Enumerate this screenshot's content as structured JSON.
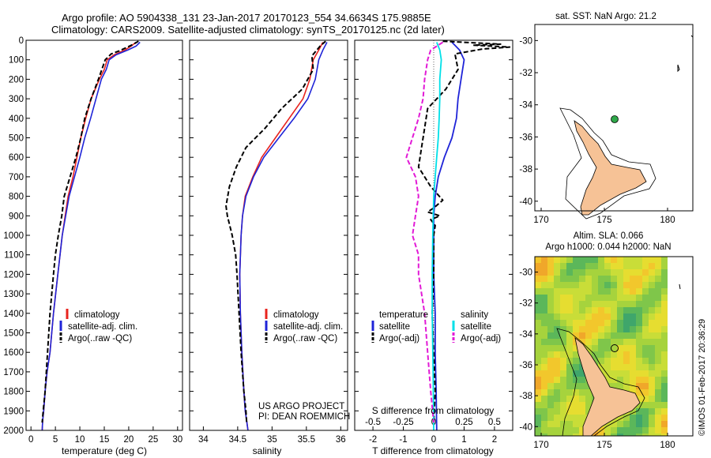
{
  "header": {
    "line1": "Argo profile: AO 5904338_131 23-Jan-2017 20170123_554 34.6634S 175.9885E",
    "line2": "Climatology: CARS2009. Satellite-adjusted climatology: synTS_20170125.nc (2d later)"
  },
  "colors": {
    "climatology": "#e8231e",
    "satellite": "#1f24d8",
    "argo": "#000000",
    "s_satellite": "#00e0e8",
    "s_argo": "#e21ad6",
    "land": "#f6c296",
    "buoy": "#2fa84a"
  },
  "depth_axis": {
    "ylim": [
      2000,
      0
    ],
    "ticks": [
      0,
      100,
      200,
      300,
      400,
      500,
      600,
      700,
      800,
      900,
      1000,
      1100,
      1200,
      1300,
      1400,
      1500,
      1600,
      1700,
      1800,
      1900,
      2000
    ]
  },
  "legend_profiles": {
    "climatology": "climatology",
    "satellite": "satellite-adj. clim.",
    "argo": "Argo(..raw -QC)"
  },
  "legend_diff": {
    "temperature": "temperature",
    "salinity": "salinity",
    "satellite": "satellite",
    "argo": "Argo(-adj)"
  },
  "project_note": {
    "line1": "US ARGO PROJECT",
    "line2": "PI: DEAN ROEMMICH"
  },
  "chart_data": [
    {
      "type": "line",
      "xlabel": "temperature (deg C)",
      "xlim": [
        -1,
        31
      ],
      "xticks": [
        0,
        5,
        10,
        15,
        20,
        25,
        30
      ],
      "series": [
        {
          "name": "climatology",
          "x": [
            21.5,
            20.5,
            19.2,
            17.0,
            15.6,
            15.0,
            14.0,
            12.3,
            11.2,
            10.2,
            9.4,
            8.6,
            7.6,
            6.4,
            5.5,
            4.6,
            3.9,
            3.3,
            2.9,
            2.6,
            2.4,
            2.3
          ],
          "depth": [
            10,
            30,
            50,
            75,
            100,
            150,
            200,
            300,
            400,
            500,
            600,
            700,
            800,
            1000,
            1200,
            1400,
            1600,
            1700,
            1800,
            1900,
            1950,
            2000
          ]
        },
        {
          "name": "satellite-adj. clim.",
          "x": [
            22.3,
            21.5,
            19.8,
            17.4,
            16.0,
            15.4,
            14.4,
            13.3,
            12.2,
            11.0,
            10.0,
            8.9,
            7.8,
            6.4,
            5.5,
            4.6,
            3.9,
            3.3,
            2.9,
            2.6,
            2.4,
            2.3
          ],
          "depth": [
            10,
            30,
            50,
            75,
            100,
            150,
            200,
            300,
            400,
            500,
            600,
            700,
            800,
            1000,
            1200,
            1400,
            1600,
            1700,
            1800,
            1900,
            1950,
            2000
          ]
        },
        {
          "name": "Argo(..raw -QC)",
          "x": [
            22.0,
            21.0,
            19.3,
            18.0,
            16.4,
            15.2,
            13.8,
            12.3,
            11.0,
            10.2,
            9.2,
            8.0,
            6.8,
            6.3,
            5.6,
            5.0,
            4.6,
            3.9,
            3.4,
            2.9,
            2.5,
            2.3
          ],
          "depth": [
            5,
            20,
            40,
            55,
            70,
            100,
            200,
            300,
            400,
            500,
            600,
            700,
            800,
            900,
            1000,
            1100,
            1200,
            1400,
            1600,
            1800,
            1900,
            1960
          ]
        }
      ]
    },
    {
      "type": "line",
      "xlabel": "salinity",
      "xlim": [
        33.8,
        36.1
      ],
      "xticks": [
        34,
        34.5,
        35,
        35.5,
        36
      ],
      "series": [
        {
          "name": "climatology",
          "x": [
            35.74,
            35.68,
            35.6,
            35.55,
            35.45,
            35.25,
            35.05,
            34.85,
            34.72,
            34.61,
            34.57,
            34.55,
            34.53,
            34.54,
            34.56,
            34.59,
            34.61,
            34.63,
            34.65
          ],
          "depth": [
            10,
            50,
            100,
            200,
            300,
            400,
            500,
            600,
            700,
            800,
            900,
            1000,
            1200,
            1400,
            1600,
            1800,
            1900,
            1950,
            2000
          ]
        },
        {
          "name": "satellite-adj. clim.",
          "x": [
            35.8,
            35.74,
            35.68,
            35.63,
            35.52,
            35.32,
            35.1,
            34.88,
            34.73,
            34.62,
            34.57,
            34.55,
            34.53,
            34.54,
            34.56,
            34.59,
            34.61,
            34.63,
            34.65
          ],
          "depth": [
            10,
            50,
            100,
            200,
            300,
            400,
            500,
            600,
            700,
            800,
            900,
            1000,
            1200,
            1400,
            1600,
            1800,
            1900,
            1950,
            2000
          ]
        },
        {
          "name": "Argo(..raw -QC)",
          "x": [
            35.78,
            35.7,
            35.58,
            35.6,
            35.44,
            35.14,
            34.9,
            34.62,
            34.48,
            34.38,
            34.33,
            34.35,
            34.42,
            34.47,
            34.49,
            34.52,
            34.55,
            34.59,
            34.62,
            34.63
          ],
          "depth": [
            5,
            30,
            80,
            150,
            250,
            350,
            450,
            550,
            650,
            750,
            850,
            900,
            1000,
            1100,
            1200,
            1400,
            1600,
            1800,
            1900,
            1960
          ]
        }
      ]
    },
    {
      "type": "line",
      "xlabel": "T difference from climatology",
      "top_label": "S difference from climatology",
      "xlim": [
        -2.6,
        2.6
      ],
      "xticks": [
        -2,
        -1,
        0,
        1,
        2
      ],
      "s_ticks": {
        "positions": [
          -2,
          -1,
          0,
          1,
          2
        ],
        "labels": [
          "-0.5",
          "-0.25",
          "0",
          "0.25",
          "0.5"
        ]
      },
      "series": [
        {
          "name": "temperature satellite",
          "x": [
            0.6,
            0.85,
            1.0,
            0.9,
            0.8,
            0.75,
            0.6,
            0.35,
            0.15,
            0.05,
            0.0,
            0.0,
            0.0,
            0.05,
            0.05,
            0.08,
            0.1
          ],
          "depth": [
            10,
            50,
            100,
            200,
            300,
            400,
            500,
            600,
            700,
            800,
            900,
            1000,
            1200,
            1400,
            1600,
            1800,
            2000
          ]
        },
        {
          "name": "temperature Argo(-adj)",
          "x": [
            0.3,
            2.2,
            1.3,
            2.5,
            1.6,
            0.7,
            0.8,
            0.4,
            -0.2,
            -0.3,
            -0.4,
            -0.5,
            -0.1,
            0.3,
            0.0,
            -0.2,
            0.2,
            -0.1,
            0.05,
            0.0,
            0.0,
            -0.05,
            0.0,
            0.05,
            0.0
          ],
          "depth": [
            5,
            20,
            25,
            35,
            45,
            70,
            150,
            250,
            350,
            450,
            550,
            650,
            750,
            820,
            860,
            880,
            900,
            920,
            950,
            1000,
            1200,
            1400,
            1600,
            1800,
            1960
          ]
        },
        {
          "name": "salinity satellite",
          "x": [
            0.1,
            0.2,
            0.25,
            0.2,
            0.2,
            0.18,
            0.15,
            0.1,
            0.05,
            0.0,
            -0.03,
            -0.05,
            -0.05,
            -0.02,
            0.0
          ],
          "depth": [
            10,
            50,
            100,
            200,
            300,
            400,
            500,
            600,
            700,
            800,
            1000,
            1200,
            1400,
            1700,
            2000
          ]
        },
        {
          "name": "salinity Argo(-adj)",
          "x": [
            0.3,
            -0.1,
            -0.2,
            -0.3,
            -0.35,
            -0.5,
            -0.7,
            -0.9,
            -0.6,
            -0.5,
            -0.6,
            -0.7,
            -0.5,
            -0.5,
            -0.3,
            -0.2,
            -0.1,
            0.0
          ],
          "depth": [
            10,
            50,
            100,
            200,
            300,
            400,
            500,
            600,
            700,
            800,
            900,
            1000,
            1100,
            1200,
            1400,
            1600,
            1800,
            1960
          ]
        }
      ]
    },
    {
      "type": "scatter",
      "title": "sat. SST: NaN  Argo: 21.2",
      "xticks": [
        170,
        175,
        180
      ],
      "yticks": [
        -30,
        -32,
        -34,
        -36,
        -38,
        -40
      ],
      "xlim": [
        169.5,
        182
      ],
      "ylim": [
        -40.6,
        -29
      ],
      "argo_position": {
        "lon": 175.9885,
        "lat": -34.6634
      }
    },
    {
      "type": "heatmap",
      "title": "Altim. SLA: 0.066",
      "subtitle": "Argo h1000: 0.044  h2000: NaN",
      "xticks": [
        170,
        175,
        180
      ],
      "yticks": [
        -30,
        -32,
        -34,
        -36,
        -38,
        -40
      ],
      "xlim": [
        169.5,
        182
      ],
      "ylim": [
        -40.6,
        -29
      ],
      "argo_position": {
        "lon": 175.9885,
        "lat": -34.6634
      }
    }
  ],
  "credit": "©IMOS 01-Feb-2017 20:36:29"
}
